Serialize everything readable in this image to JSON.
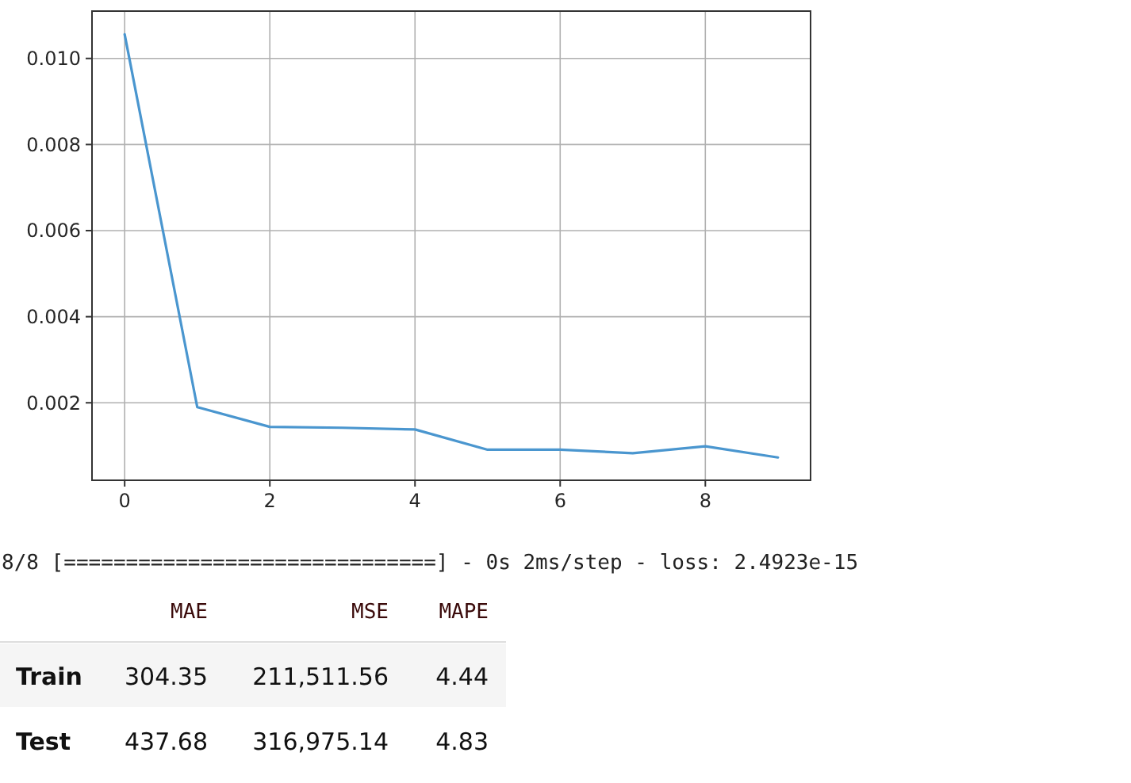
{
  "chart_data": [
    {
      "type": "line",
      "x": [
        0,
        1,
        2,
        3,
        4,
        5,
        6,
        7,
        8,
        9
      ],
      "series": [
        {
          "color": "#4a96cf",
          "values": [
            0.01056,
            0.0019,
            0.00144,
            0.00142,
            0.00138,
            0.00091,
            0.00091,
            0.00083,
            0.00099,
            0.00073
          ]
        }
      ],
      "xlim": [
        -0.45,
        9.45
      ],
      "ylim": [
        0.0002,
        0.0111
      ],
      "xticks": [
        0,
        2,
        4,
        6,
        8
      ],
      "yticks": [
        {
          "value": 0.002,
          "label": "0.002"
        },
        {
          "value": 0.004,
          "label": "0.004"
        },
        {
          "value": 0.006,
          "label": "0.006"
        },
        {
          "value": 0.008,
          "label": "0.008"
        },
        {
          "value": 0.01,
          "label": "0.010"
        }
      ],
      "grid": true,
      "marker": "none",
      "line_style": "solid"
    },
    {
      "type": "other",
      "annotations": [
        "8/8 [==============================] - 0s 2ms/step - loss: 2.4923e-15"
      ],
      "categories": [
        "MAE",
        "MSE",
        "MAPE"
      ],
      "y_categories": [
        "Train",
        "Test"
      ],
      "cell_labels": [
        [
          "304.35",
          "211,511.56",
          "4.44"
        ],
        [
          "437.68",
          "316,975.14",
          "4.83"
        ]
      ]
    }
  ]
}
